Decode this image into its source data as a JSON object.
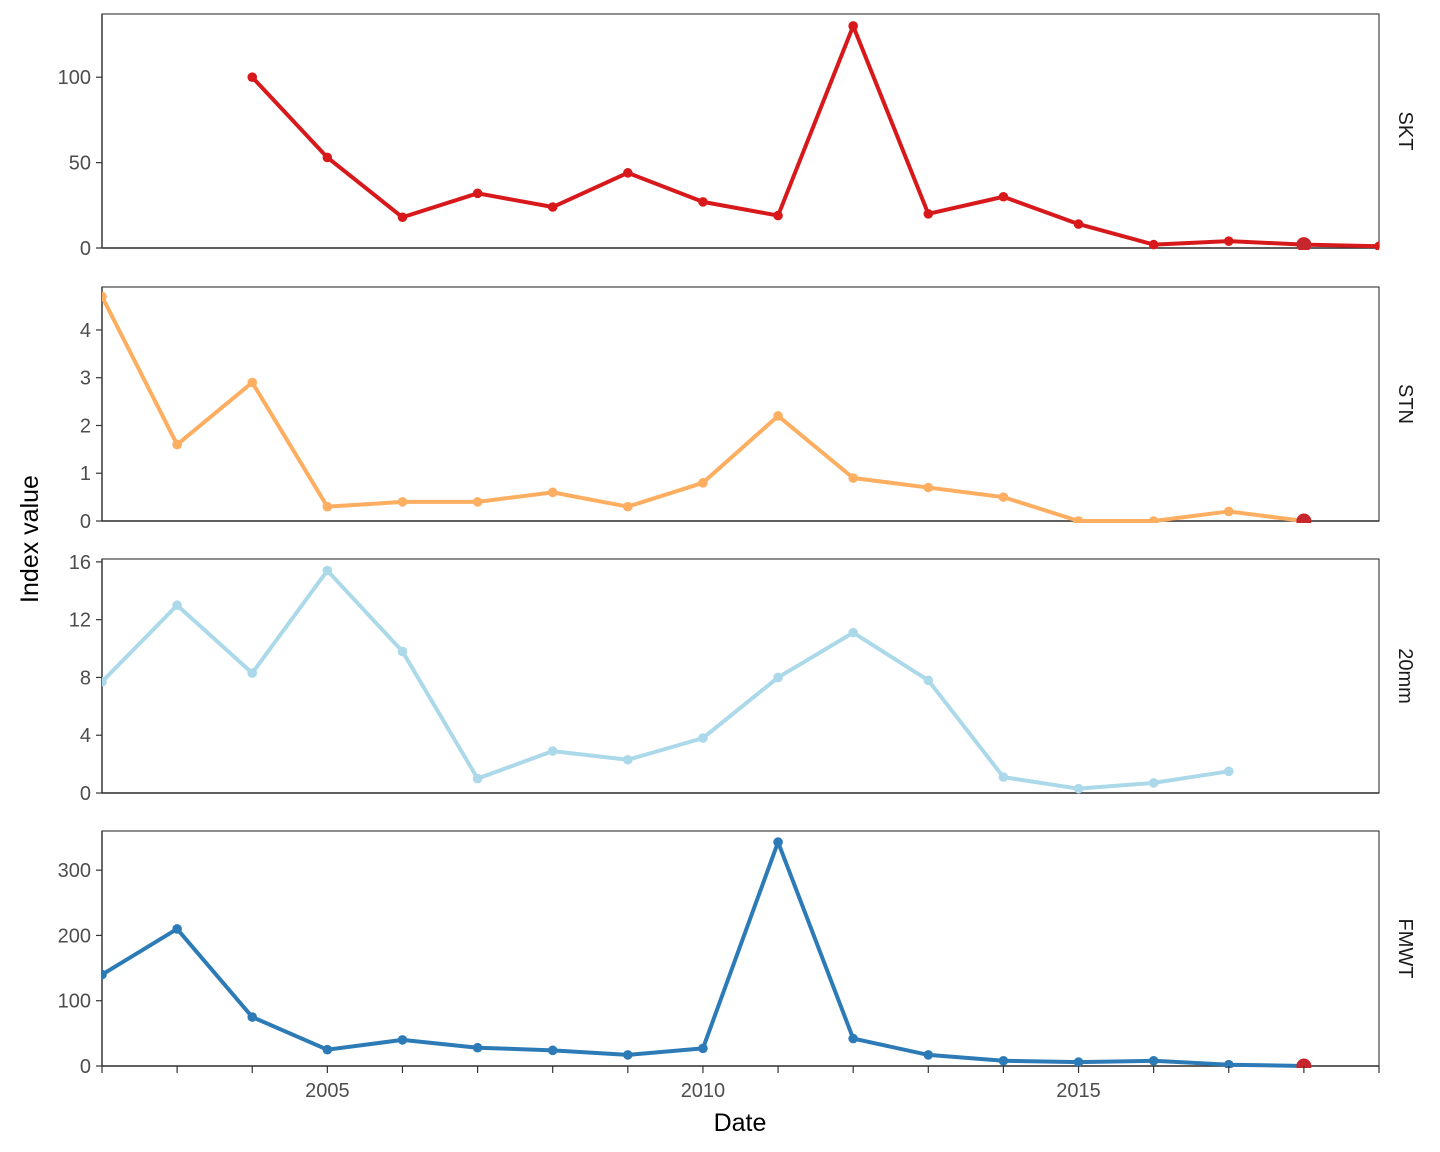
{
  "chart_data": {
    "type": "line",
    "layout": "faceted (4 stacked panels, shared x axis, independent y axes)",
    "xlabel": "Date",
    "ylabel": "Index value",
    "xlim": [
      2002,
      2019
    ],
    "x_ticks": [
      2005,
      2010,
      2015
    ],
    "x_minor_ticks": [
      2002,
      2003,
      2004,
      2006,
      2007,
      2008,
      2009,
      2011,
      2012,
      2013,
      2014,
      2016,
      2017,
      2018,
      2019
    ],
    "grid": false,
    "legend": "none",
    "highlight_point_color": "#c8262d",
    "panels": [
      {
        "label": "SKT",
        "color": "#d7191c",
        "ylim": [
          0,
          137
        ],
        "y_ticks": [
          0,
          50,
          100
        ],
        "x": [
          2004,
          2005,
          2006,
          2007,
          2008,
          2009,
          2010,
          2011,
          2012,
          2013,
          2014,
          2015,
          2016,
          2017,
          2018,
          2019
        ],
        "values": [
          100,
          53,
          18,
          32,
          24,
          44,
          27,
          19,
          130,
          20,
          30,
          14,
          2,
          4,
          2,
          1
        ],
        "highlight": {
          "x": 2018,
          "value": 2
        }
      },
      {
        "label": "STN",
        "color": "#fdae61",
        "ylim": [
          0,
          4.9
        ],
        "y_ticks": [
          0,
          1,
          2,
          3,
          4
        ],
        "x": [
          2002,
          2003,
          2004,
          2005,
          2006,
          2007,
          2008,
          2009,
          2010,
          2011,
          2012,
          2013,
          2014,
          2015,
          2016,
          2017,
          2018
        ],
        "values": [
          4.7,
          1.6,
          2.9,
          0.3,
          0.4,
          0.4,
          0.6,
          0.3,
          0.8,
          2.2,
          0.9,
          0.7,
          0.5,
          0.0,
          0.0,
          0.2,
          0.0
        ],
        "highlight": {
          "x": 2018,
          "value": 0
        }
      },
      {
        "label": "20mm",
        "color": "#abd9e9",
        "ylim": [
          0,
          16.2
        ],
        "y_ticks": [
          0,
          4,
          8,
          12,
          16
        ],
        "x": [
          2002,
          2003,
          2004,
          2005,
          2006,
          2007,
          2008,
          2009,
          2010,
          2011,
          2012,
          2013,
          2014,
          2015,
          2016,
          2017
        ],
        "values": [
          7.7,
          13.0,
          8.3,
          15.4,
          9.8,
          1.0,
          2.9,
          2.3,
          3.8,
          8.0,
          11.1,
          7.8,
          1.1,
          0.3,
          0.7,
          1.5
        ],
        "highlight": null
      },
      {
        "label": "FMWT",
        "color": "#2c7bb6",
        "ylim": [
          0,
          360
        ],
        "y_ticks": [
          0,
          100,
          200,
          300
        ],
        "x": [
          2002,
          2003,
          2004,
          2005,
          2006,
          2007,
          2008,
          2009,
          2010,
          2011,
          2012,
          2013,
          2014,
          2015,
          2016,
          2017,
          2018
        ],
        "values": [
          140,
          210,
          75,
          25,
          40,
          28,
          24,
          17,
          27,
          343,
          42,
          17,
          8,
          6,
          8,
          2,
          0
        ],
        "highlight": {
          "x": 2018,
          "value": 0
        }
      }
    ]
  }
}
